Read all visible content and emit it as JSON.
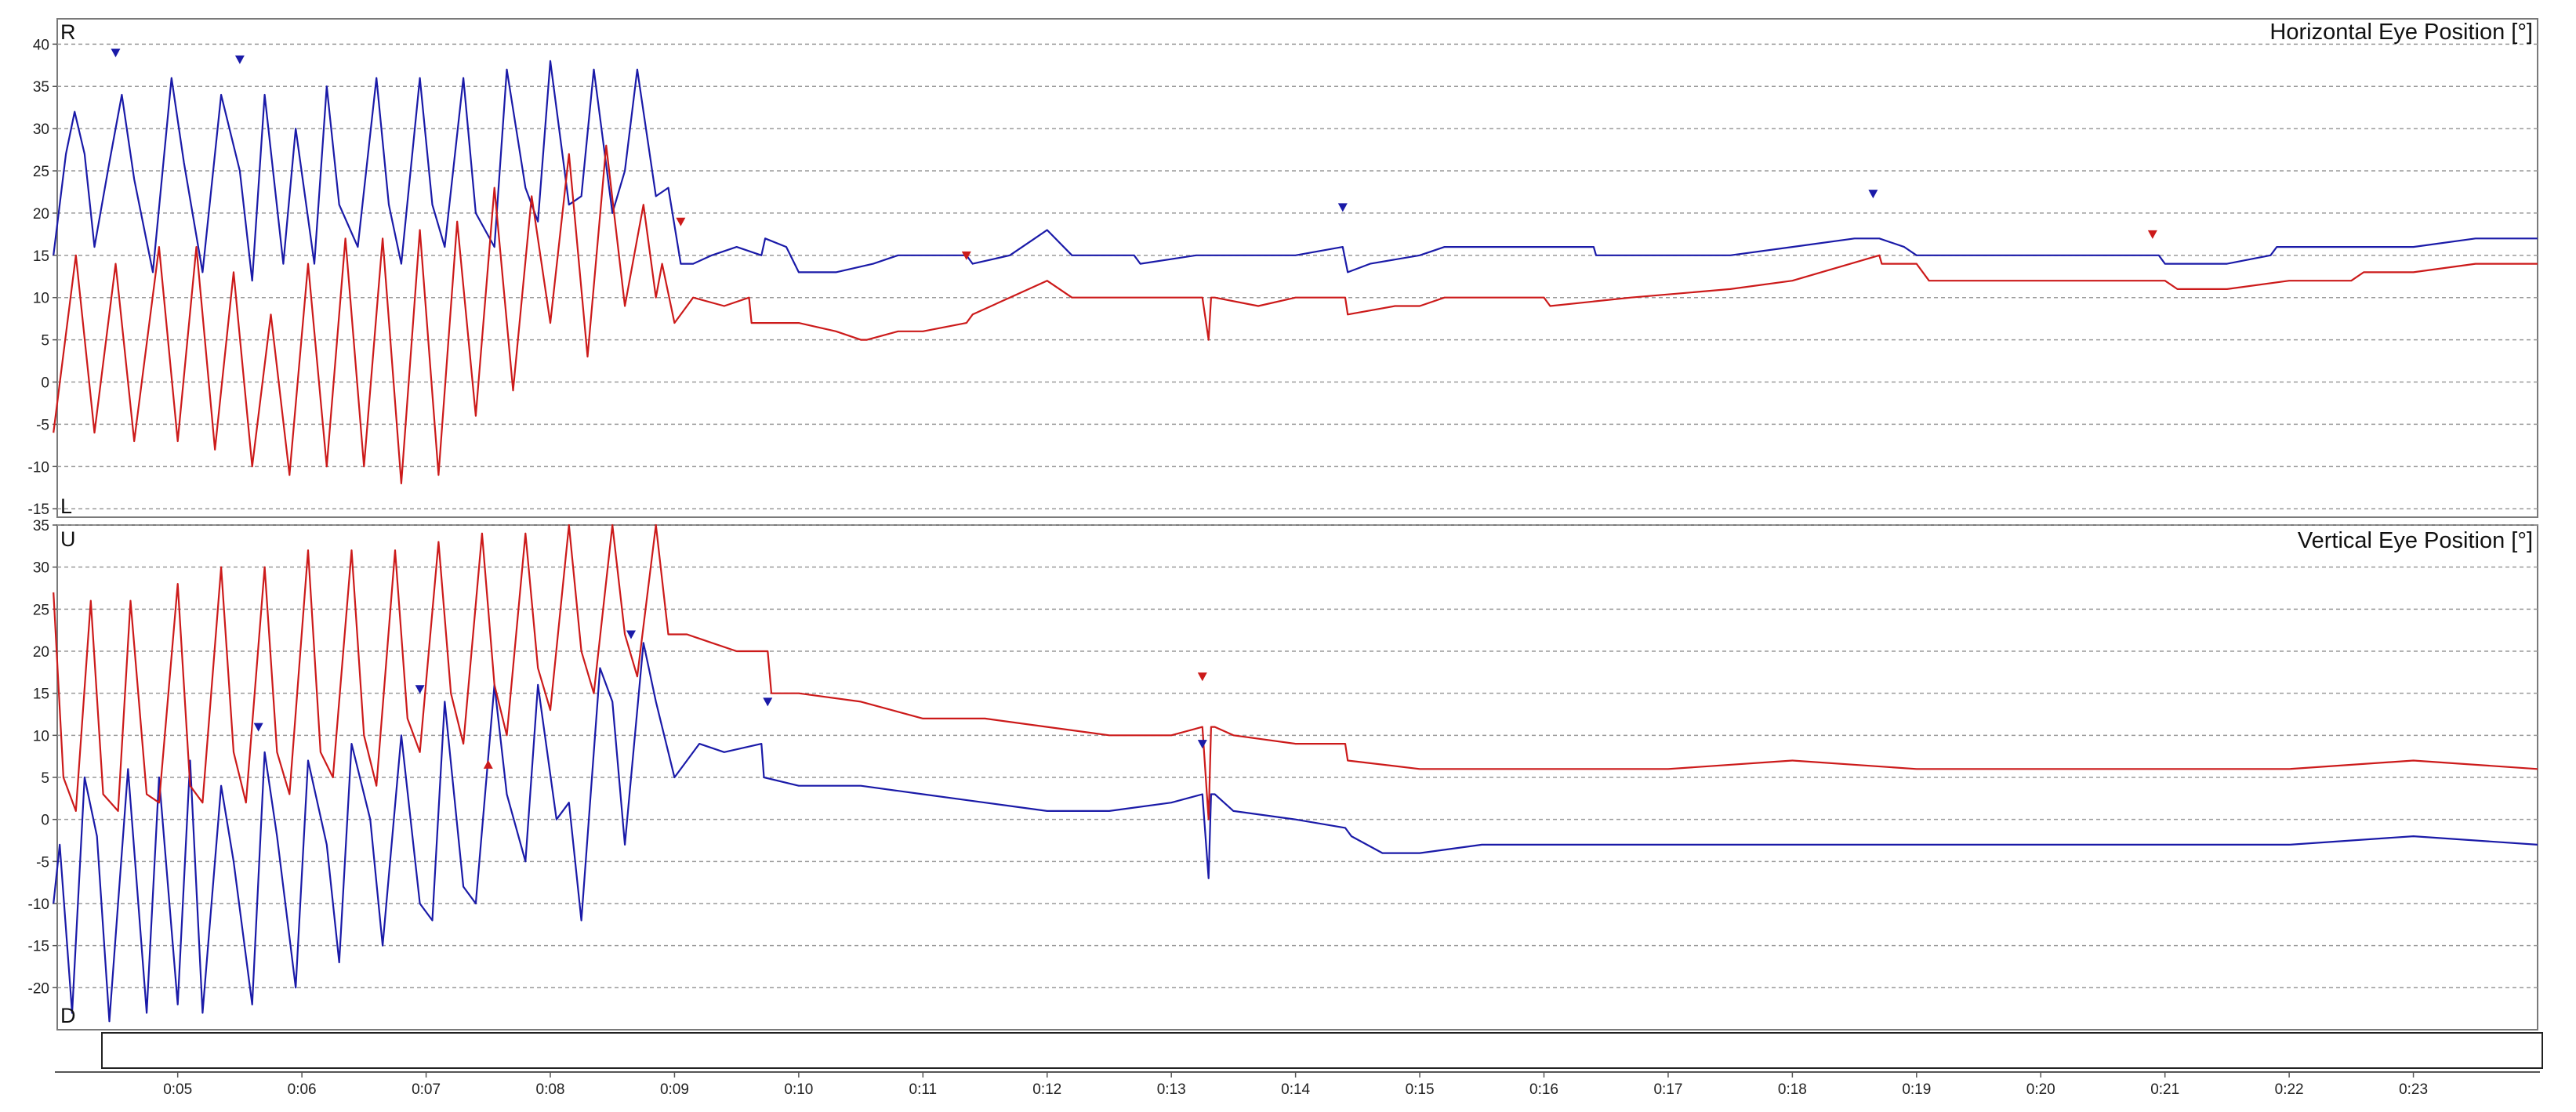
{
  "chart_data": [
    {
      "type": "line",
      "title": "Horizontal Eye Position [°]",
      "top_label": "R",
      "bottom_label": "L",
      "ylim": [
        -16,
        43
      ],
      "yticks": [
        40,
        35,
        30,
        25,
        20,
        15,
        10,
        5,
        0,
        -5,
        -10,
        -15
      ],
      "ytick_labels": [
        "40",
        "35",
        "30",
        "25",
        "20",
        "15",
        "10",
        "5",
        "0",
        "-5",
        "-10",
        "-15"
      ],
      "grid": true,
      "series": [
        {
          "color": "#1a1aa8",
          "x": [
            4.0,
            4.1,
            4.17,
            4.25,
            4.33,
            4.45,
            4.55,
            4.65,
            4.8,
            4.95,
            5.05,
            5.2,
            5.35,
            5.5,
            5.6,
            5.7,
            5.85,
            5.95,
            6.1,
            6.2,
            6.3,
            6.45,
            6.6,
            6.7,
            6.8,
            6.95,
            7.05,
            7.15,
            7.3,
            7.4,
            7.55,
            7.65,
            7.8,
            7.9,
            8.0,
            8.15,
            8.25,
            8.35,
            8.5,
            8.6,
            8.7,
            8.85,
            8.95,
            9.05,
            9.15,
            9.3,
            9.5,
            9.7,
            9.73,
            9.9,
            10.0,
            10.3,
            10.6,
            10.8,
            11.0,
            11.35,
            11.4,
            11.7,
            11.9,
            12.0,
            12.2,
            12.7,
            12.75,
            13.2,
            13.3,
            13.65,
            14.0,
            14.38,
            14.42,
            14.6,
            15.0,
            15.2,
            15.6,
            16.0,
            16.4,
            16.42,
            17.0,
            17.5,
            18.0,
            18.5,
            18.7,
            18.9,
            19.0,
            19.5,
            20.0,
            20.5,
            20.95,
            21.0,
            21.5,
            21.85,
            21.9,
            22.5,
            23.0,
            23.5,
            24.0
          ],
          "y": [
            15,
            27,
            32,
            27,
            16,
            26,
            34,
            24,
            13,
            36,
            26,
            13,
            34,
            25,
            12,
            34,
            14,
            30,
            14,
            35,
            21,
            16,
            36,
            21,
            14,
            36,
            21,
            16,
            36,
            20,
            16,
            37,
            23,
            19,
            38,
            21,
            22,
            37,
            20,
            25,
            37,
            22,
            23,
            14,
            14,
            15,
            16,
            15,
            17,
            16,
            13,
            13,
            14,
            15,
            15,
            15,
            14,
            15,
            17,
            18,
            15,
            15,
            14,
            15,
            15,
            15,
            15,
            16,
            13,
            14,
            15,
            16,
            16,
            16,
            16,
            15,
            15,
            15,
            16,
            17,
            17,
            16,
            15,
            15,
            15,
            15,
            15,
            14,
            14,
            15,
            16,
            16,
            16,
            17,
            17
          ]
        },
        {
          "color": "#cc1a1a",
          "x": [
            4.0,
            4.18,
            4.33,
            4.5,
            4.65,
            4.85,
            5.0,
            5.15,
            5.3,
            5.45,
            5.6,
            5.75,
            5.9,
            6.05,
            6.2,
            6.35,
            6.5,
            6.65,
            6.8,
            6.95,
            7.1,
            7.25,
            7.4,
            7.55,
            7.7,
            7.85,
            8.0,
            8.15,
            8.3,
            8.45,
            8.6,
            8.75,
            8.85,
            8.9,
            9.0,
            9.1,
            9.15,
            9.4,
            9.6,
            9.62,
            10.0,
            10.3,
            10.5,
            10.55,
            10.8,
            11.0,
            11.35,
            11.4,
            11.7,
            12.0,
            12.2,
            12.5,
            13.0,
            13.25,
            13.3,
            13.32,
            13.35,
            13.7,
            14.0,
            14.4,
            14.42,
            14.8,
            15.0,
            15.2,
            15.5,
            16.0,
            16.05,
            16.7,
            17.5,
            18.0,
            18.7,
            18.72,
            19.0,
            19.1,
            19.5,
            20.0,
            20.5,
            21.0,
            21.1,
            21.5,
            22.0,
            22.5,
            22.6,
            23.0,
            23.5,
            24.0
          ],
          "y": [
            -6,
            15,
            -6,
            14,
            -7,
            16,
            -7,
            16,
            -8,
            13,
            -10,
            8,
            -11,
            14,
            -10,
            17,
            -10,
            17,
            -12,
            18,
            -11,
            19,
            -4,
            23,
            -1,
            22,
            7,
            27,
            3,
            28,
            9,
            21,
            10,
            14,
            7,
            9,
            10,
            9,
            10,
            7,
            7,
            6,
            5,
            5,
            6,
            6,
            7,
            8,
            10,
            12,
            10,
            10,
            10,
            10,
            5,
            10,
            10,
            9,
            10,
            10,
            8,
            9,
            9,
            10,
            10,
            10,
            9,
            10,
            11,
            12,
            15,
            14,
            14,
            12,
            12,
            12,
            12,
            12,
            11,
            11,
            12,
            12,
            13,
            13,
            14,
            14
          ]
        }
      ],
      "markers": [
        {
          "x": 4.5,
          "y": 39,
          "color": "#1a1aa8",
          "direction": "down"
        },
        {
          "x": 5.5,
          "y": 38.2,
          "color": "#1a1aa8",
          "direction": "down"
        },
        {
          "x": 9.05,
          "y": 19,
          "color": "#cc1a1a",
          "direction": "down"
        },
        {
          "x": 11.35,
          "y": 15,
          "color": "#cc1a1a",
          "direction": "down"
        },
        {
          "x": 14.38,
          "y": 20.7,
          "color": "#1a1aa8",
          "direction": "down"
        },
        {
          "x": 18.65,
          "y": 22.3,
          "color": "#1a1aa8",
          "direction": "down"
        },
        {
          "x": 20.9,
          "y": 17.5,
          "color": "#cc1a1a",
          "direction": "down"
        }
      ]
    },
    {
      "type": "line",
      "title": "Vertical Eye Position [°]",
      "top_label": "U",
      "bottom_label": "D",
      "ylim": [
        -25,
        35
      ],
      "yticks": [
        35,
        30,
        25,
        20,
        15,
        10,
        5,
        0,
        -5,
        -10,
        -15,
        -20
      ],
      "ytick_labels": [
        "35",
        "30",
        "25",
        "20",
        "15",
        "10",
        "5",
        "0",
        "-5",
        "-10",
        "-15",
        "-20"
      ],
      "grid": true,
      "series": [
        {
          "color": "#1a1aa8",
          "x": [
            4.0,
            4.05,
            4.15,
            4.25,
            4.35,
            4.45,
            4.6,
            4.75,
            4.85,
            5.0,
            5.1,
            5.2,
            5.35,
            5.45,
            5.6,
            5.7,
            5.8,
            5.95,
            6.05,
            6.2,
            6.3,
            6.4,
            6.55,
            6.65,
            6.8,
            6.95,
            7.05,
            7.15,
            7.3,
            7.4,
            7.55,
            7.65,
            7.8,
            7.9,
            8.05,
            8.15,
            8.25,
            8.4,
            8.5,
            8.6,
            8.75,
            8.85,
            9.0,
            9.2,
            9.4,
            9.7,
            9.72,
            10.0,
            10.5,
            11.0,
            11.5,
            12.0,
            12.5,
            13.0,
            13.25,
            13.3,
            13.32,
            13.35,
            13.5,
            14.0,
            14.4,
            14.45,
            14.7,
            15.0,
            15.5,
            16.0,
            17.0,
            18.0,
            18.9,
            19.0,
            20.0,
            21.0,
            22.0,
            23.0,
            24.0
          ],
          "y": [
            -10,
            -3,
            -23,
            5,
            -2,
            -24,
            6,
            -23,
            5,
            -22,
            7,
            -23,
            4,
            -5,
            -22,
            8,
            -2,
            -20,
            7,
            -3,
            -17,
            9,
            0,
            -15,
            10,
            -10,
            -12,
            14,
            -8,
            -10,
            16,
            3,
            -5,
            16,
            0,
            2,
            -12,
            18,
            14,
            -3,
            21,
            14,
            5,
            9,
            8,
            9,
            5,
            4,
            4,
            3,
            2,
            1,
            1,
            2,
            3,
            -7,
            3,
            3,
            1,
            0,
            -1,
            -2,
            -4,
            -4,
            -3,
            -3,
            -3,
            -3,
            -3,
            -3,
            -3,
            -3,
            -3,
            -2,
            -3
          ]
        },
        {
          "color": "#cc1a1a",
          "x": [
            4.0,
            4.08,
            4.18,
            4.3,
            4.4,
            4.52,
            4.62,
            4.75,
            4.85,
            5.0,
            5.1,
            5.2,
            5.35,
            5.45,
            5.55,
            5.7,
            5.8,
            5.9,
            6.05,
            6.15,
            6.25,
            6.4,
            6.5,
            6.6,
            6.75,
            6.85,
            6.95,
            7.1,
            7.2,
            7.3,
            7.45,
            7.55,
            7.65,
            7.8,
            7.9,
            8.0,
            8.15,
            8.25,
            8.35,
            8.5,
            8.6,
            8.7,
            8.85,
            8.95,
            9.1,
            9.3,
            9.5,
            9.75,
            9.78,
            10.0,
            10.5,
            11.0,
            11.5,
            12.0,
            12.5,
            13.0,
            13.25,
            13.3,
            13.32,
            13.35,
            13.5,
            14.0,
            14.4,
            14.42,
            15.0,
            16.0,
            17.0,
            18.0,
            19.0,
            20.0,
            21.0,
            22.0,
            23.0,
            24.0
          ],
          "y": [
            27,
            5,
            1,
            26,
            3,
            1,
            26,
            3,
            2,
            28,
            4,
            2,
            30,
            8,
            2,
            30,
            8,
            3,
            32,
            8,
            5,
            32,
            10,
            4,
            32,
            12,
            8,
            33,
            15,
            9,
            34,
            16,
            10,
            34,
            18,
            13,
            35,
            20,
            15,
            35,
            22,
            17,
            35,
            22,
            22,
            21,
            20,
            20,
            15,
            15,
            14,
            12,
            12,
            11,
            10,
            10,
            11,
            0,
            11,
            11,
            10,
            9,
            9,
            7,
            6,
            6,
            6,
            7,
            6,
            6,
            6,
            6,
            7,
            6
          ]
        }
      ],
      "markers": [
        {
          "x": 5.65,
          "y": 11,
          "color": "#1a1aa8",
          "direction": "down"
        },
        {
          "x": 6.95,
          "y": 15.5,
          "color": "#1a1aa8",
          "direction": "down"
        },
        {
          "x": 7.5,
          "y": 6.5,
          "color": "#cc1a1a",
          "direction": "up"
        },
        {
          "x": 8.65,
          "y": 22,
          "color": "#1a1aa8",
          "direction": "down"
        },
        {
          "x": 9.75,
          "y": 14,
          "color": "#1a1aa8",
          "direction": "down"
        },
        {
          "x": 13.25,
          "y": 17,
          "color": "#cc1a1a",
          "direction": "down"
        },
        {
          "x": 13.25,
          "y": 9,
          "color": "#1a1aa8",
          "direction": "down"
        }
      ]
    }
  ],
  "timeline": {
    "xlim": [
      4.03,
      24.0
    ],
    "ticks": [
      5,
      6,
      7,
      8,
      9,
      10,
      11,
      12,
      13,
      14,
      15,
      16,
      17,
      18,
      19,
      20,
      21,
      22,
      23
    ],
    "tick_labels": [
      "0:05",
      "0:06",
      "0:07",
      "0:08",
      "0:09",
      "0:10",
      "0:11",
      "0:12",
      "0:13",
      "0:14",
      "0:15",
      "0:16",
      "0:17",
      "0:18",
      "0:19",
      "0:20",
      "0:21",
      "0:22",
      "0:23"
    ]
  }
}
